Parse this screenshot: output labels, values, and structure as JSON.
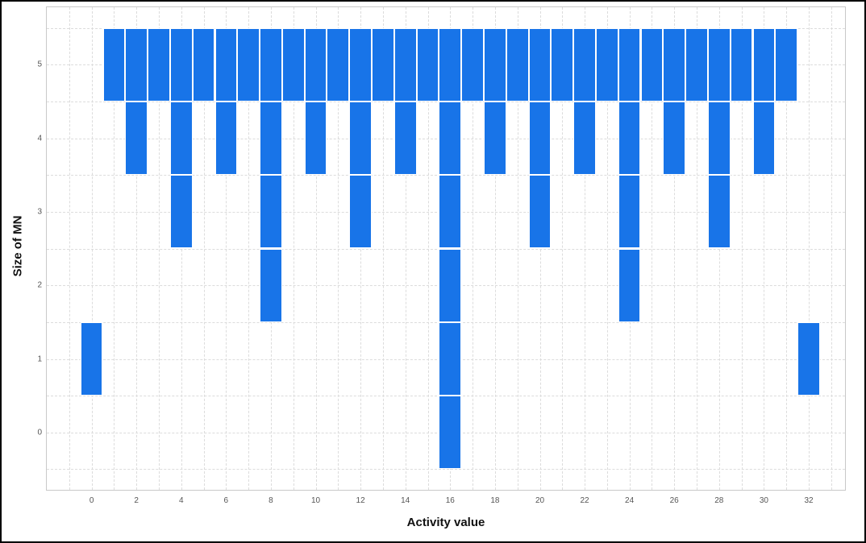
{
  "chart_data": {
    "type": "bar",
    "title": "",
    "xlabel": "Activity value",
    "ylabel": "Size of MN",
    "xlim": [
      -2.0,
      33.62
    ],
    "ylim": [
      -0.78,
      5.78
    ],
    "x_ticks": [
      0,
      2,
      4,
      6,
      8,
      10,
      12,
      14,
      16,
      18,
      20,
      22,
      24,
      26,
      28,
      30,
      32
    ],
    "y_ticks": [
      0,
      1,
      2,
      3,
      4,
      5
    ],
    "bar_color": "#1874e8",
    "bar_separator_color": "#ffffff",
    "bar_width": 1,
    "grid": {
      "style": "dashed",
      "color": "#dcdcdc",
      "x_step": 1,
      "y_step": 0.5
    },
    "legend": "none",
    "bars": [
      {
        "x": 0,
        "bottom": 0.5,
        "top": 1.5
      },
      {
        "x": 1,
        "bottom": 4.5,
        "top": 5.5
      },
      {
        "x": 2,
        "bottom": 3.5,
        "top": 5.5
      },
      {
        "x": 3,
        "bottom": 4.5,
        "top": 5.5
      },
      {
        "x": 4,
        "bottom": 2.5,
        "top": 5.5
      },
      {
        "x": 5,
        "bottom": 4.5,
        "top": 5.5
      },
      {
        "x": 6,
        "bottom": 3.5,
        "top": 5.5
      },
      {
        "x": 7,
        "bottom": 4.5,
        "top": 5.5
      },
      {
        "x": 8,
        "bottom": 1.5,
        "top": 5.5
      },
      {
        "x": 9,
        "bottom": 4.5,
        "top": 5.5
      },
      {
        "x": 10,
        "bottom": 3.5,
        "top": 5.5
      },
      {
        "x": 11,
        "bottom": 4.5,
        "top": 5.5
      },
      {
        "x": 12,
        "bottom": 2.5,
        "top": 5.5
      },
      {
        "x": 13,
        "bottom": 4.5,
        "top": 5.5
      },
      {
        "x": 14,
        "bottom": 3.5,
        "top": 5.5
      },
      {
        "x": 15,
        "bottom": 4.5,
        "top": 5.5
      },
      {
        "x": 16,
        "bottom": -0.5,
        "top": 5.5
      },
      {
        "x": 17,
        "bottom": 4.5,
        "top": 5.5
      },
      {
        "x": 18,
        "bottom": 3.5,
        "top": 5.5
      },
      {
        "x": 19,
        "bottom": 4.5,
        "top": 5.5
      },
      {
        "x": 20,
        "bottom": 2.5,
        "top": 5.5
      },
      {
        "x": 21,
        "bottom": 4.5,
        "top": 5.5
      },
      {
        "x": 22,
        "bottom": 3.5,
        "top": 5.5
      },
      {
        "x": 23,
        "bottom": 4.5,
        "top": 5.5
      },
      {
        "x": 24,
        "bottom": 1.5,
        "top": 5.5
      },
      {
        "x": 25,
        "bottom": 4.5,
        "top": 5.5
      },
      {
        "x": 26,
        "bottom": 3.5,
        "top": 5.5
      },
      {
        "x": 27,
        "bottom": 4.5,
        "top": 5.5
      },
      {
        "x": 28,
        "bottom": 2.5,
        "top": 5.5
      },
      {
        "x": 29,
        "bottom": 4.5,
        "top": 5.5
      },
      {
        "x": 30,
        "bottom": 3.5,
        "top": 5.5
      },
      {
        "x": 31,
        "bottom": 4.5,
        "top": 5.5
      },
      {
        "x": 32,
        "bottom": 0.5,
        "top": 1.5
      }
    ]
  }
}
